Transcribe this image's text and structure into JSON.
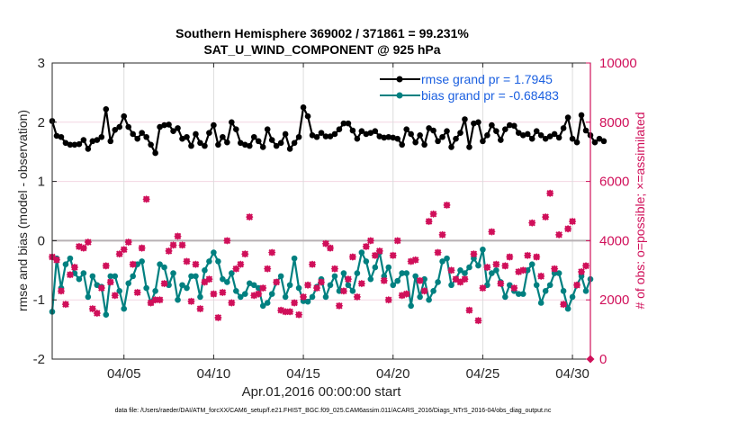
{
  "chart_data": {
    "type": "line",
    "title": "Southern Hemisphere 369002 / 371861 = 99.231%",
    "subtitle": "SAT_U_WIND_COMPONENT @ 925 hPa",
    "xlabel": "Apr.01,2016 00:00:00 start",
    "ylabel": "rmse and bias (model - observation)",
    "y2label": "# of obs: o=possible; ×=assimilated",
    "footer": "data file: /Users/raeder/DAI/ATM_forcXX/CAM6_setup/f.e21.FHIST_BGC.f09_025.CAM6assim.011/ACARS_2016/Diags_NTrS_2016-04/obs_diag_output.nc",
    "xlim_days": [
      1,
      31
    ],
    "ylim": [
      -2,
      3
    ],
    "y2lim": [
      0,
      10000
    ],
    "yticks": [
      "3",
      "2",
      "1",
      "0",
      "-1",
      "-2"
    ],
    "y2ticks": [
      "10000",
      "8000",
      "6000",
      "4000",
      "2000",
      "0"
    ],
    "xticks": [
      {
        "day": 5,
        "label": "04/05"
      },
      {
        "day": 10,
        "label": "04/10"
      },
      {
        "day": 15,
        "label": "04/15"
      },
      {
        "day": 20,
        "label": "04/20"
      },
      {
        "day": 25,
        "label": "04/25"
      },
      {
        "day": 30,
        "label": "04/30"
      }
    ],
    "grid": true,
    "zero_line": 0,
    "legend_position": "top-right",
    "legend": [
      {
        "label": "rmse grand pr = 1.7945",
        "color": "#000000"
      },
      {
        "label": "bias grand pr = -0.68483",
        "color": "#008080"
      }
    ],
    "x_start_day": 1,
    "x_step_days": 0.25,
    "series": [
      {
        "name": "rmse",
        "axis": "left",
        "color": "#000000",
        "values": [
          2.02,
          1.77,
          1.75,
          1.65,
          1.62,
          1.62,
          1.63,
          1.7,
          1.55,
          1.68,
          1.7,
          1.75,
          2.22,
          1.68,
          1.87,
          1.92,
          2.1,
          1.92,
          1.8,
          1.72,
          1.82,
          1.75,
          1.62,
          1.48,
          1.92,
          1.95,
          1.96,
          1.85,
          1.9,
          1.72,
          1.75,
          1.6,
          1.8,
          1.65,
          1.6,
          1.82,
          1.95,
          1.62,
          1.75,
          1.66,
          2.0,
          1.88,
          1.65,
          1.62,
          1.6,
          1.75,
          1.68,
          1.58,
          1.88,
          1.7,
          1.6,
          1.65,
          1.8,
          1.55,
          1.65,
          1.75,
          2.25,
          2.1,
          1.78,
          1.75,
          1.82,
          1.76,
          1.76,
          1.8,
          1.88,
          1.98,
          1.98,
          1.86,
          1.72,
          1.85,
          1.8,
          1.82,
          1.85,
          1.76,
          1.74,
          1.75,
          1.74,
          1.72,
          1.62,
          1.88,
          1.8,
          1.66,
          1.78,
          1.62,
          1.9,
          1.86,
          1.68,
          1.75,
          1.85,
          1.58,
          1.72,
          1.82,
          2.05,
          1.58,
          1.98,
          2.0,
          1.68,
          1.78,
          1.95,
          1.85,
          1.7,
          1.88,
          1.95,
          1.94,
          1.82,
          1.78,
          1.8,
          1.72,
          1.85,
          1.78,
          1.72,
          1.76,
          1.8,
          1.74,
          1.9,
          2.08,
          1.72,
          1.66,
          2.12,
          1.86,
          1.78,
          1.66,
          1.72,
          1.68
        ]
      },
      {
        "name": "bias",
        "axis": "left",
        "color": "#008080",
        "values": [
          -1.2,
          -0.3,
          -0.8,
          -0.4,
          -0.3,
          -0.55,
          -0.65,
          -0.55,
          -0.95,
          -0.6,
          -0.75,
          -0.78,
          -1.25,
          -0.6,
          -0.6,
          -0.85,
          -1.15,
          -0.72,
          -0.6,
          -0.4,
          -0.35,
          -0.8,
          -1.05,
          -0.85,
          -0.4,
          -0.45,
          -0.75,
          -0.55,
          -1.0,
          -0.75,
          -0.8,
          -0.6,
          -0.6,
          -0.95,
          -0.5,
          -0.35,
          -0.2,
          -0.35,
          -0.65,
          -0.7,
          -0.55,
          -0.85,
          -0.95,
          -0.9,
          -0.72,
          -0.75,
          -0.8,
          -1.1,
          -1.05,
          -0.9,
          -0.7,
          -0.6,
          -0.95,
          -0.75,
          -0.3,
          -0.8,
          -1.02,
          -1.03,
          -0.95,
          -0.78,
          -0.65,
          -0.95,
          -0.75,
          -0.6,
          -0.85,
          -0.55,
          -0.75,
          -0.85,
          -0.55,
          -0.2,
          -0.35,
          -0.65,
          -0.45,
          -0.2,
          -0.6,
          -0.45,
          -0.75,
          -0.68,
          -0.55,
          -0.55,
          -1.1,
          -0.6,
          -0.95,
          -0.65,
          -1.0,
          -0.85,
          -0.7,
          -0.35,
          -0.3,
          -0.75,
          -0.65,
          -0.5,
          -0.55,
          -0.45,
          -0.3,
          -0.42,
          -0.15,
          -0.75,
          -0.55,
          -0.5,
          -0.7,
          -0.95,
          -0.75,
          -0.85,
          -0.9,
          -0.9,
          -0.5,
          -0.4,
          -0.75,
          -1.05,
          -0.85,
          -0.75,
          -0.55,
          -0.55,
          -0.85,
          -1.15,
          -0.95,
          -0.75,
          -0.6,
          -0.85,
          -0.65
        ]
      },
      {
        "name": "obs assimilated",
        "axis": "right",
        "color": "#d0105a",
        "values": [
          3450,
          3350,
          2300,
          1850,
          2850,
          3100,
          3800,
          3750,
          3950,
          1700,
          1550,
          2400,
          3150,
          2600,
          2150,
          3550,
          3700,
          3950,
          3200,
          2250,
          3750,
          5400,
          1900,
          2000,
          2000,
          2550,
          3650,
          3850,
          4150,
          3850,
          3300,
          1950,
          3200,
          1700,
          2600,
          2700,
          2200,
          1400,
          2250,
          4000,
          1900,
          3050,
          3200,
          3550,
          4800,
          2150,
          2200,
          2400,
          3050,
          3600,
          2600,
          1650,
          1600,
          1600,
          1900,
          1500,
          2100,
          2500,
          3200,
          2400,
          2600,
          3900,
          3750,
          3050,
          1800,
          2300,
          2700,
          3450,
          2100,
          2550,
          3800,
          4000,
          3500,
          3650,
          2650,
          2000,
          3500,
          4000,
          2150,
          2200,
          3300,
          3350,
          2650,
          2300,
          4650,
          4900,
          3600,
          4200,
          5200,
          3000,
          2700,
          2600,
          2700,
          1650,
          3550,
          1300,
          2400,
          3100,
          4300,
          3200,
          2550,
          3150,
          3450,
          2400,
          2950,
          3000,
          3500,
          4600,
          3450,
          2800,
          4800,
          5600,
          3050,
          4200,
          1850,
          4400,
          4650,
          2500,
          2950,
          3150
        ]
      }
    ]
  }
}
